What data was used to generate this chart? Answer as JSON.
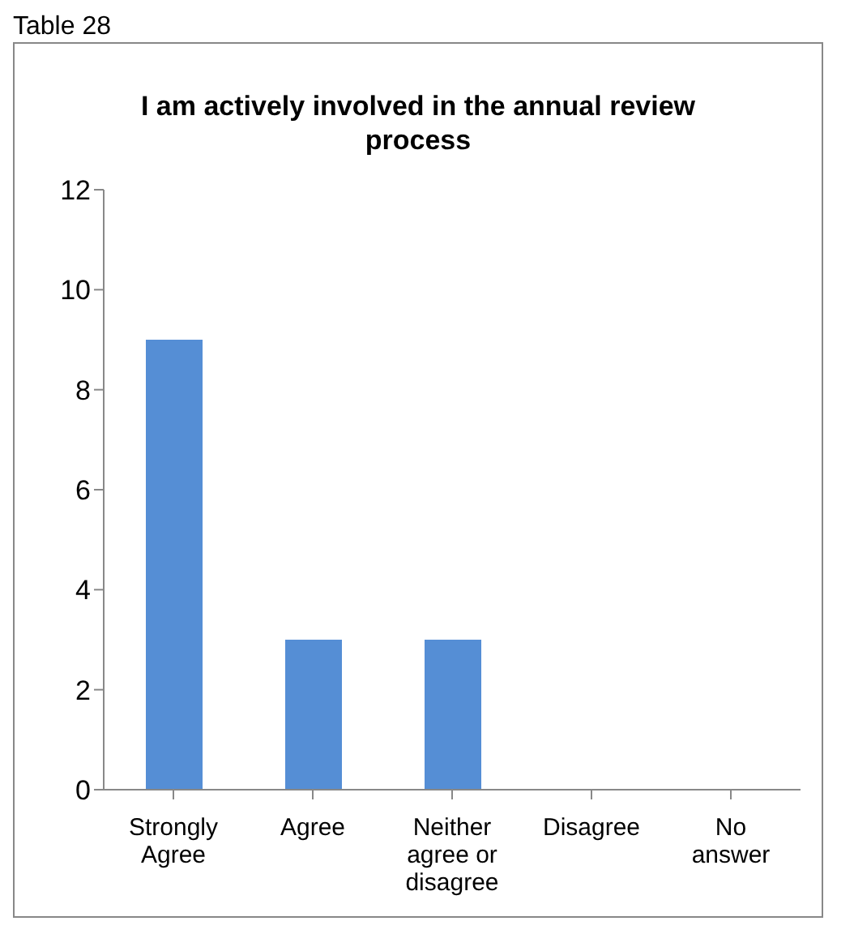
{
  "chart_data": {
    "type": "bar",
    "title": "I am actively involved in the annual review process",
    "annotations": [
      "Table 28"
    ],
    "categories": [
      "Strongly Agree",
      "Agree",
      "Neither agree or disagree",
      "Disagree",
      "No answer"
    ],
    "values": [
      9,
      3,
      3,
      0,
      0
    ],
    "color": "#558ed5",
    "ylim": [
      0,
      12
    ],
    "yticks": [
      0,
      2,
      4,
      6,
      8,
      10,
      12
    ],
    "grid": false,
    "legend": false
  }
}
